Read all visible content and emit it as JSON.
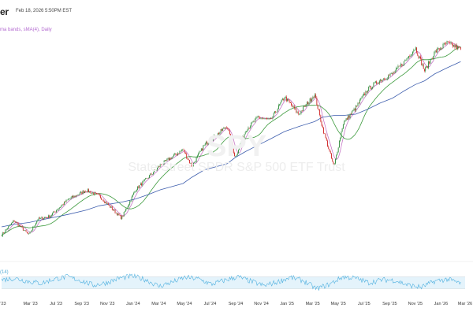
{
  "header": {
    "logo_fragment": "er",
    "timestamp": "Feb 18, 2026 5:50PM EST",
    "overlay_label": "ma bands, sMA(4), Daily",
    "rsi_label": "(14)"
  },
  "watermark": {
    "ticker": "SPY",
    "name": "State Street SPDR S&P 500 ETF Trust"
  },
  "colors": {
    "up": "#2e8b3a",
    "down": "#d02828",
    "ma_short": "#c678c6",
    "ma_mid": "#3c9a3c",
    "ma_long": "#3f5fae",
    "rsi": "#4fb0df",
    "rsi_band": "#e4f3fb"
  },
  "chart_data": {
    "type": "line",
    "x_axis_ticks": [
      "'23",
      "Mar '23",
      "Jul '23",
      "Sep '23",
      "Nov '23",
      "Jan '24",
      "Mar '24",
      "May '24",
      "Jul '24",
      "Sep '24",
      "Nov '24",
      "Jan '25",
      "Mar '25",
      "May '25",
      "Jul '25",
      "Sep '25",
      "Nov '25",
      "Jan '26",
      "Mar '26"
    ],
    "x_start": "2023-01-01",
    "x_end": "2026-03-01",
    "ylim": [
      370,
      720
    ],
    "price_dates": [
      "2023-01-01",
      "2023-02-01",
      "2023-03-10",
      "2023-04-01",
      "2023-05-01",
      "2023-06-15",
      "2023-07-31",
      "2023-09-01",
      "2023-10-27",
      "2023-12-01",
      "2024-01-01",
      "2024-02-01",
      "2024-03-28",
      "2024-04-19",
      "2024-05-20",
      "2024-07-16",
      "2024-08-05",
      "2024-09-01",
      "2024-10-01",
      "2024-11-01",
      "2024-12-06",
      "2025-01-10",
      "2025-02-19",
      "2025-03-10",
      "2025-04-08",
      "2025-05-01",
      "2025-06-01",
      "2025-07-01",
      "2025-08-01",
      "2025-09-01",
      "2025-10-01",
      "2025-10-28",
      "2025-11-20",
      "2025-12-15",
      "2026-01-15",
      "2026-02-18"
    ],
    "price_values": [
      385,
      408,
      385,
      410,
      415,
      442,
      457,
      448,
      412,
      458,
      478,
      498,
      523,
      496,
      530,
      561,
      510,
      555,
      575,
      570,
      608,
      580,
      612,
      560,
      495,
      565,
      590,
      620,
      635,
      645,
      665,
      688,
      650,
      680,
      695,
      685
    ],
    "ma_long_values": [
      398,
      402,
      405,
      408,
      412,
      418,
      425,
      432,
      438,
      443,
      450,
      458,
      468,
      478,
      490,
      500,
      510,
      520,
      530,
      540,
      552,
      560,
      568,
      575,
      578,
      578,
      580,
      588,
      598,
      606,
      618,
      628,
      634,
      645,
      655,
      665
    ],
    "rsi_ylim": [
      0,
      100
    ],
    "rsi_bands": [
      30,
      70
    ],
    "rsi_pattern": [
      60,
      65,
      55,
      48,
      62,
      70,
      58,
      42,
      50,
      66,
      72,
      60,
      38,
      52,
      68,
      63,
      45,
      58,
      70,
      55,
      40,
      52,
      68,
      57,
      30,
      45,
      70,
      65,
      50,
      60,
      58,
      42,
      35,
      55,
      62,
      48
    ]
  }
}
